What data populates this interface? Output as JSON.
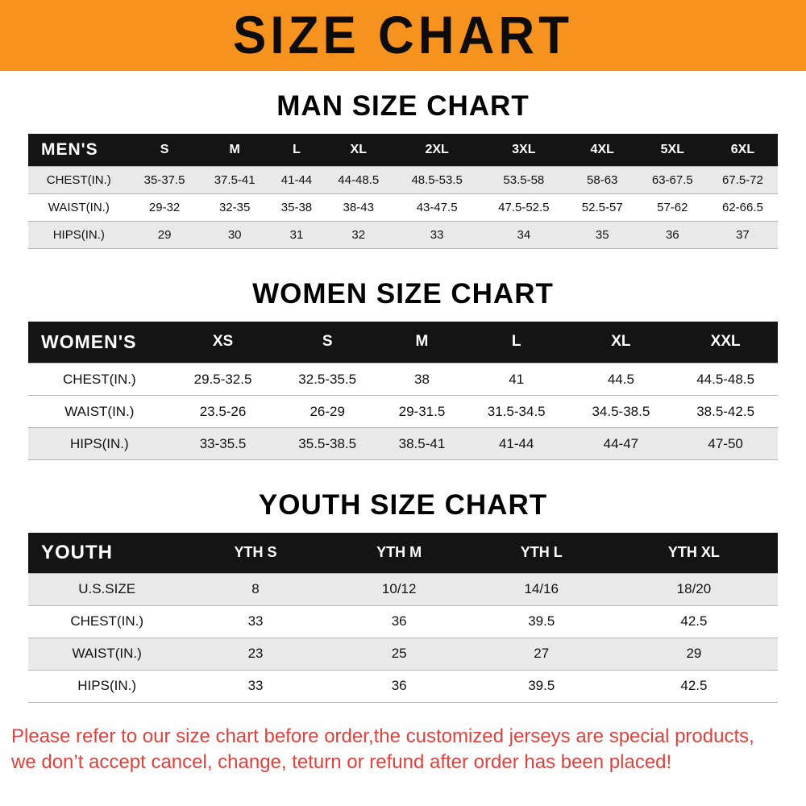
{
  "banner": {
    "title": "SIZE CHART"
  },
  "colors": {
    "banner_bg": "#F6921E",
    "table_header_bg": "#141414",
    "row_stripe": "#E9E9E9",
    "footer_text": "#E2403C"
  },
  "chart_data": [
    {
      "type": "table",
      "title": "MAN SIZE CHART",
      "corner_label": "MEN'S",
      "columns": [
        "S",
        "M",
        "L",
        "XL",
        "2XL",
        "3XL",
        "4XL",
        "5XL",
        "6XL"
      ],
      "rows": [
        {
          "label": "CHEST(IN.)",
          "values": [
            "35-37.5",
            "37.5-41",
            "41-44",
            "44-48.5",
            "48.5-53.5",
            "53.5-58",
            "58-63",
            "63-67.5",
            "67.5-72"
          ]
        },
        {
          "label": "WAIST(IN.)",
          "values": [
            "29-32",
            "32-35",
            "35-38",
            "38-43",
            "43-47.5",
            "47.5-52.5",
            "52.5-57",
            "57-62",
            "62-66.5"
          ]
        },
        {
          "label": "HIPS(IN.)",
          "values": [
            "29",
            "30",
            "31",
            "32",
            "33",
            "34",
            "35",
            "36",
            "37"
          ]
        }
      ]
    },
    {
      "type": "table",
      "title": "WOMEN SIZE CHART",
      "corner_label": "WOMEN'S",
      "columns": [
        "XS",
        "S",
        "M",
        "L",
        "XL",
        "XXL"
      ],
      "rows": [
        {
          "label": "CHEST(IN.)",
          "values": [
            "29.5-32.5",
            "32.5-35.5",
            "38",
            "41",
            "44.5",
            "44.5-48.5"
          ]
        },
        {
          "label": "WAIST(IN.)",
          "values": [
            "23.5-26",
            "26-29",
            "29-31.5",
            "31.5-34.5",
            "34.5-38.5",
            "38.5-42.5"
          ]
        },
        {
          "label": "HIPS(IN.)",
          "values": [
            "33-35.5",
            "35.5-38.5",
            "38.5-41",
            "41-44",
            "44-47",
            "47-50"
          ]
        }
      ]
    },
    {
      "type": "table",
      "title": "YOUTH SIZE CHART",
      "corner_label": "YOUTH",
      "columns": [
        "YTH S",
        "YTH M",
        "YTH L",
        "YTH XL"
      ],
      "rows": [
        {
          "label": "U.S.SIZE",
          "values": [
            "8",
            "10/12",
            "14/16",
            "18/20"
          ]
        },
        {
          "label": "CHEST(IN.)",
          "values": [
            "33",
            "36",
            "39.5",
            "42.5"
          ]
        },
        {
          "label": "WAIST(IN.)",
          "values": [
            "23",
            "25",
            "27",
            "29"
          ]
        },
        {
          "label": "HIPS(IN.)",
          "values": [
            "33",
            "36",
            "39.5",
            "42.5"
          ]
        }
      ]
    }
  ],
  "footer": {
    "line1": "Please refer to our size chart before order,the customized jerseys are special products,",
    "line2": "we don’t accept cancel, change, teturn or refund after order has been placed!"
  }
}
